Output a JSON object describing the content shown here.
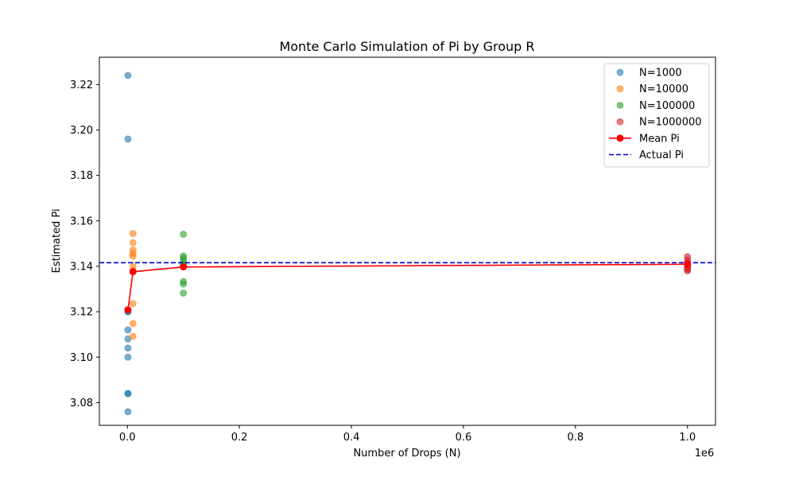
{
  "chart_data": {
    "type": "scatter",
    "title": "Monte Carlo Simulation of Pi by Group R",
    "xlabel": "Number of Drops (N)",
    "ylabel": "Estimated Pi",
    "x_offset_label": "1e6",
    "x_scale": 1000000,
    "xlim": [
      -50000,
      1050000
    ],
    "ylim": [
      3.07,
      3.232
    ],
    "x_ticks": [
      0,
      200000,
      400000,
      600000,
      800000,
      1000000
    ],
    "x_tick_labels": [
      "0.0",
      "0.2",
      "0.4",
      "0.6",
      "0.8",
      "1.0"
    ],
    "y_ticks": [
      3.08,
      3.1,
      3.12,
      3.14,
      3.16,
      3.18,
      3.2,
      3.22
    ],
    "y_tick_labels": [
      "3.08",
      "3.10",
      "3.12",
      "3.14",
      "3.16",
      "3.18",
      "3.20",
      "3.22"
    ],
    "grid": false,
    "legend_position": "top-right",
    "series": [
      {
        "name": "N=1000",
        "kind": "scatter",
        "color": "#1f77b4",
        "x": [
          1000,
          1000,
          1000,
          1000,
          1000,
          1000,
          1000,
          1000,
          1000,
          1000,
          1000
        ],
        "y": [
          3.224,
          3.196,
          3.112,
          3.108,
          3.104,
          3.1,
          3.084,
          3.084,
          3.076,
          3.12,
          3.12
        ]
      },
      {
        "name": "N=10000",
        "kind": "scatter",
        "color": "#ff7f0e",
        "x": [
          10000,
          10000,
          10000,
          10000,
          10000,
          10000,
          10000,
          10000,
          10000,
          10000
        ],
        "y": [
          3.1544,
          3.1504,
          3.1472,
          3.1456,
          3.1444,
          3.14,
          3.1236,
          3.1148,
          3.1092,
          3.138
        ]
      },
      {
        "name": "N=100000",
        "kind": "scatter",
        "color": "#2ca02c",
        "x": [
          100000,
          100000,
          100000,
          100000,
          100000,
          100000,
          100000,
          100000,
          100000,
          100000
        ],
        "y": [
          3.1541,
          3.1445,
          3.1436,
          3.1425,
          3.141,
          3.1398,
          3.1333,
          3.1322,
          3.1282,
          3.1405
        ]
      },
      {
        "name": "N=1000000",
        "kind": "scatter",
        "color": "#d62728",
        "x": [
          1000000,
          1000000,
          1000000,
          1000000,
          1000000,
          1000000,
          1000000,
          1000000,
          1000000,
          1000000
        ],
        "y": [
          3.1442,
          3.1428,
          3.1418,
          3.141,
          3.1405,
          3.14,
          3.1395,
          3.139,
          3.1385,
          3.138
        ]
      },
      {
        "name": "Mean Pi",
        "kind": "line-marker",
        "color": "#ff0000",
        "x": [
          1000,
          10000,
          100000,
          1000000
        ],
        "y": [
          3.1208,
          3.1376,
          3.1397,
          3.1409
        ]
      },
      {
        "name": "Actual Pi",
        "kind": "hline-dashed",
        "color": "#0000cc",
        "y": [
          3.14159
        ]
      }
    ]
  }
}
